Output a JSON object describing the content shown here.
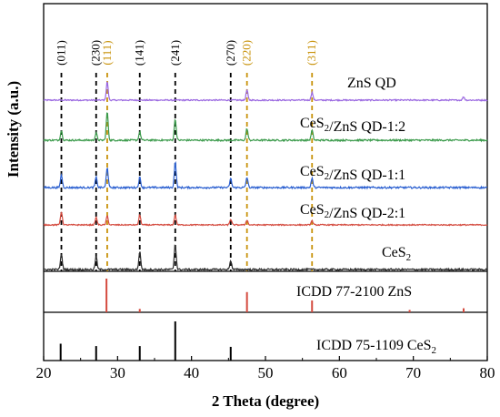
{
  "chart_data": {
    "type": "line",
    "xlabel": "2 Theta (degree)",
    "ylabel": "Intensity (a.u.)",
    "xlim": [
      20,
      80
    ],
    "x_ticks": [
      "20",
      "30",
      "40",
      "50",
      "60",
      "70",
      "80"
    ],
    "grid": false,
    "series": [
      {
        "name": "ZnS QD",
        "color": "#9966e0",
        "peaks": [
          {
            "x": 28.6,
            "h": 1.0
          },
          {
            "x": 47.5,
            "h": 0.55
          },
          {
            "x": 56.3,
            "h": 0.42
          },
          {
            "x": 76.8,
            "h": 0.18
          }
        ]
      },
      {
        "name": "CeS2/ZnS QD-1:2",
        "color": "#3a9a4a",
        "peaks": [
          {
            "x": 22.4,
            "h": 0.4
          },
          {
            "x": 27.1,
            "h": 0.3
          },
          {
            "x": 28.6,
            "h": 1.2
          },
          {
            "x": 33.0,
            "h": 0.35
          },
          {
            "x": 37.8,
            "h": 0.9
          },
          {
            "x": 47.5,
            "h": 0.5
          },
          {
            "x": 56.3,
            "h": 0.42
          }
        ]
      },
      {
        "name": "CeS2/ZnS QD-1:1",
        "color": "#2a5fd0",
        "peaks": [
          {
            "x": 22.4,
            "h": 0.5
          },
          {
            "x": 27.1,
            "h": 0.4
          },
          {
            "x": 28.6,
            "h": 0.8
          },
          {
            "x": 33.0,
            "h": 0.4
          },
          {
            "x": 37.8,
            "h": 1.0
          },
          {
            "x": 45.3,
            "h": 0.35
          },
          {
            "x": 47.5,
            "h": 0.4
          },
          {
            "x": 56.3,
            "h": 0.35
          }
        ]
      },
      {
        "name": "CeS2/ZnS QD-2:1",
        "color": "#d44a3e",
        "peaks": [
          {
            "x": 22.4,
            "h": 0.8
          },
          {
            "x": 27.1,
            "h": 0.45
          },
          {
            "x": 28.6,
            "h": 0.55
          },
          {
            "x": 33.0,
            "h": 0.6
          },
          {
            "x": 37.8,
            "h": 0.6
          },
          {
            "x": 45.3,
            "h": 0.35
          },
          {
            "x": 47.5,
            "h": 0.3
          },
          {
            "x": 56.3,
            "h": 0.25
          }
        ]
      },
      {
        "name": "CeS2",
        "color": "#2b2b2b",
        "peaks": [
          {
            "x": 22.4,
            "h": 0.6
          },
          {
            "x": 27.1,
            "h": 0.5
          },
          {
            "x": 33.0,
            "h": 0.7
          },
          {
            "x": 37.8,
            "h": 1.0
          },
          {
            "x": 45.3,
            "h": 0.35
          }
        ]
      }
    ],
    "reference_patterns": [
      {
        "name": "ICDD 77-2100 ZnS",
        "color": "#d44a3e",
        "lines": [
          {
            "x": 28.5,
            "h": 1.0
          },
          {
            "x": 33.0,
            "h": 0.1
          },
          {
            "x": 47.5,
            "h": 0.6
          },
          {
            "x": 56.3,
            "h": 0.35
          },
          {
            "x": 69.5,
            "h": 0.07
          },
          {
            "x": 76.8,
            "h": 0.12
          }
        ]
      },
      {
        "name": "ICDD 75-1109 CeS2",
        "color": "#000000",
        "lines": [
          {
            "x": 22.3,
            "h": 0.43
          },
          {
            "x": 27.1,
            "h": 0.37
          },
          {
            "x": 33.0,
            "h": 0.37
          },
          {
            "x": 37.8,
            "h": 1.0
          },
          {
            "x": 45.3,
            "h": 0.35
          }
        ]
      }
    ],
    "hkl_annotations": [
      {
        "label": "(011)",
        "x": 22.4,
        "color": "#000000"
      },
      {
        "label": "(230)",
        "x": 27.1,
        "color": "#000000"
      },
      {
        "label": "(111)",
        "x": 28.6,
        "color": "#c8920a"
      },
      {
        "label": "(141)",
        "x": 33.0,
        "color": "#000000"
      },
      {
        "label": "(241)",
        "x": 37.8,
        "color": "#000000"
      },
      {
        "label": "(270)",
        "x": 45.3,
        "color": "#000000"
      },
      {
        "label": "(220)",
        "x": 47.5,
        "color": "#c8920a"
      },
      {
        "label": "(311)",
        "x": 56.3,
        "color": "#c8920a"
      }
    ]
  }
}
